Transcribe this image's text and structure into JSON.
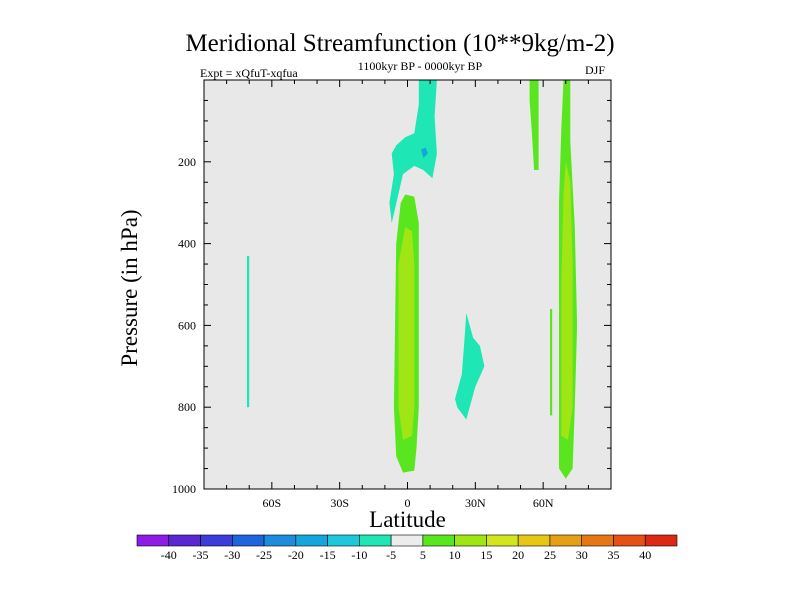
{
  "title": "Meridional Streamfunction (10**9kg/m-2)",
  "experiment_label": "Expt = xQfuT-xqfua",
  "subtitle": "1100kyr BP - 0000kyr BP",
  "season": "DJF",
  "chart_data": {
    "type": "contour",
    "title": "Meridional Streamfunction (10**9kg/m-2)",
    "xlabel": "Latitude",
    "ylabel": "Pressure (in hPa)",
    "xlim": [
      -90,
      90
    ],
    "ylim": [
      1000,
      0
    ],
    "x_ticks": [
      {
        "v": -60,
        "label": "60S"
      },
      {
        "v": -30,
        "label": "30S"
      },
      {
        "v": 0,
        "label": "0"
      },
      {
        "v": 30,
        "label": "30N"
      },
      {
        "v": 60,
        "label": "60N"
      }
    ],
    "y_ticks": [
      {
        "v": 200,
        "label": "200"
      },
      {
        "v": 400,
        "label": "400"
      },
      {
        "v": 600,
        "label": "600"
      },
      {
        "v": 800,
        "label": "800"
      },
      {
        "v": 1000,
        "label": "1000"
      }
    ],
    "background_color": "#e8e8e8",
    "colorbar": {
      "bounds": [
        -40,
        -35,
        -30,
        -25,
        -20,
        -15,
        -10,
        -5,
        5,
        10,
        15,
        20,
        25,
        30,
        35,
        40
      ],
      "colors": [
        "#8c1ce6",
        "#5a28d2",
        "#3c3cdc",
        "#1e64dc",
        "#1e8cdc",
        "#14a5dc",
        "#1ec8dc",
        "#1ee6b4",
        "#ececec",
        "#5ae61e",
        "#a0e614",
        "#d2e61e",
        "#e6c814",
        "#e6a014",
        "#e67814",
        "#e65014",
        "#dc2814"
      ],
      "labels": [
        "-40",
        "-35",
        "-30",
        "-25",
        "-20",
        "-15",
        "-10",
        "-5",
        "5",
        "10",
        "15",
        "20",
        "25",
        "30",
        "35",
        "40"
      ]
    },
    "regions": [
      {
        "level": "-10to-5",
        "color": "#1ee6b4",
        "points": [
          [
            -71,
            430
          ],
          [
            -70,
            430
          ],
          [
            -70,
            800
          ],
          [
            -71,
            800
          ]
        ]
      },
      {
        "level": "-10to-5",
        "color": "#1ee6b4",
        "points": [
          [
            5,
            0
          ],
          [
            13,
            0
          ],
          [
            12,
            90
          ],
          [
            13,
            180
          ],
          [
            11,
            240
          ],
          [
            7,
            220
          ],
          [
            3,
            210
          ],
          [
            -2,
            230
          ],
          [
            -7,
            350
          ],
          [
            -8,
            300
          ],
          [
            -6,
            230
          ],
          [
            -7,
            180
          ],
          [
            -5,
            160
          ],
          [
            -1,
            140
          ],
          [
            3,
            130
          ],
          [
            5,
            60
          ]
        ]
      },
      {
        "level": "-15to-10",
        "color": "#14a5dc",
        "points": [
          [
            6,
            170
          ],
          [
            8,
            165
          ],
          [
            9,
            180
          ],
          [
            7,
            190
          ]
        ]
      },
      {
        "level": "-10to-5",
        "color": "#1ee6b4",
        "points": [
          [
            26,
            570
          ],
          [
            29,
            630
          ],
          [
            32,
            650
          ],
          [
            34,
            700
          ],
          [
            30,
            750
          ],
          [
            26,
            830
          ],
          [
            22,
            800
          ],
          [
            21,
            780
          ],
          [
            24,
            720
          ],
          [
            25,
            650
          ]
        ]
      },
      {
        "level": "5to10",
        "color": "#5ae61e",
        "points": [
          [
            -1,
            280
          ],
          [
            3,
            285
          ],
          [
            5,
            350
          ],
          [
            5,
            800
          ],
          [
            4,
            900
          ],
          [
            3,
            955
          ],
          [
            -2,
            960
          ],
          [
            -5,
            920
          ],
          [
            -6,
            800
          ],
          [
            -5,
            400
          ],
          [
            -3,
            300
          ]
        ]
      },
      {
        "level": "10to15",
        "color": "#a0e614",
        "points": [
          [
            -1,
            360
          ],
          [
            2,
            370
          ],
          [
            3,
            450
          ],
          [
            3,
            800
          ],
          [
            2,
            870
          ],
          [
            -2,
            880
          ],
          [
            -4,
            800
          ],
          [
            -4,
            450
          ]
        ]
      },
      {
        "level": "5to10",
        "color": "#5ae61e",
        "points": [
          [
            54,
            0
          ],
          [
            58,
            0
          ],
          [
            58,
            220
          ],
          [
            56,
            220
          ],
          [
            55,
            130
          ],
          [
            54,
            50
          ]
        ]
      },
      {
        "level": "5to10",
        "color": "#5ae61e",
        "points": [
          [
            63,
            560
          ],
          [
            64,
            560
          ],
          [
            64,
            820
          ],
          [
            63,
            820
          ]
        ]
      },
      {
        "level": "5to10",
        "color": "#5ae61e",
        "points": [
          [
            69,
            0
          ],
          [
            72,
            0
          ],
          [
            72,
            150
          ],
          [
            74,
            360
          ],
          [
            75,
            600
          ],
          [
            74,
            800
          ],
          [
            73,
            950
          ],
          [
            70,
            975
          ],
          [
            67,
            950
          ],
          [
            67,
            700
          ],
          [
            67,
            300
          ],
          [
            68,
            120
          ]
        ]
      },
      {
        "level": "10to15",
        "color": "#a0e614",
        "points": [
          [
            70,
            200
          ],
          [
            72,
            250
          ],
          [
            73,
            450
          ],
          [
            73,
            800
          ],
          [
            71,
            880
          ],
          [
            68,
            870
          ],
          [
            68,
            500
          ],
          [
            69,
            280
          ]
        ]
      }
    ]
  }
}
